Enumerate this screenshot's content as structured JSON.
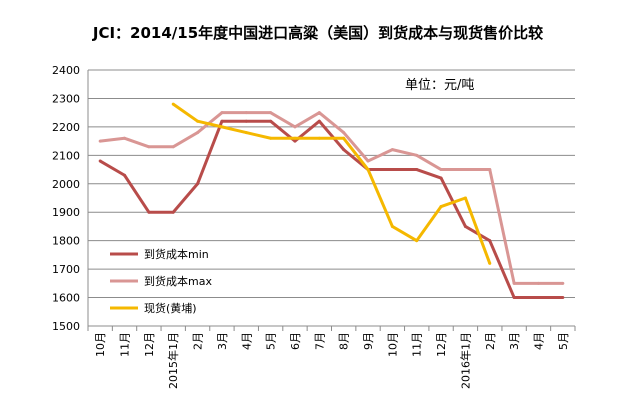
{
  "chart_data": {
    "type": "line",
    "title": "JCI：2014/15年度中国进口高粱（美国）到货成本与现货售价比较",
    "unit": "单位：元/吨",
    "categories": [
      "10月",
      "11月",
      "12月",
      "2015年1月",
      "2月",
      "3月",
      "4月",
      "5月",
      "6月",
      "7月",
      "8月",
      "9月",
      "10月",
      "11月",
      "12月",
      "2016年1月",
      "2月",
      "3月",
      "4月",
      "5月"
    ],
    "ylim": [
      1500,
      2400
    ],
    "yticks": [
      1500,
      1600,
      1700,
      1800,
      1900,
      2000,
      2100,
      2200,
      2300,
      2400
    ],
    "grid": true,
    "legend_position": "bottom-left",
    "series": [
      {
        "name": "到货成本min",
        "color": "#b84c4a",
        "values": [
          2080,
          2030,
          1900,
          1900,
          2000,
          2220,
          2220,
          2220,
          2150,
          2220,
          2120,
          2050,
          2050,
          2050,
          2020,
          1850,
          1800,
          1600,
          1600,
          1600
        ]
      },
      {
        "name": "到货成本max",
        "color": "#d99694",
        "values": [
          2150,
          2160,
          2130,
          2130,
          2180,
          2250,
          2250,
          2250,
          2200,
          2250,
          2180,
          2080,
          2120,
          2100,
          2050,
          2050,
          2050,
          1650,
          1650,
          1650
        ]
      },
      {
        "name": "现货(黄埔)",
        "color": "#f5b800",
        "values": [
          null,
          null,
          null,
          2280,
          2220,
          2200,
          2180,
          2160,
          2160,
          2160,
          2160,
          2050,
          1850,
          1800,
          1920,
          1950,
          1720,
          null,
          null,
          null
        ]
      }
    ]
  }
}
